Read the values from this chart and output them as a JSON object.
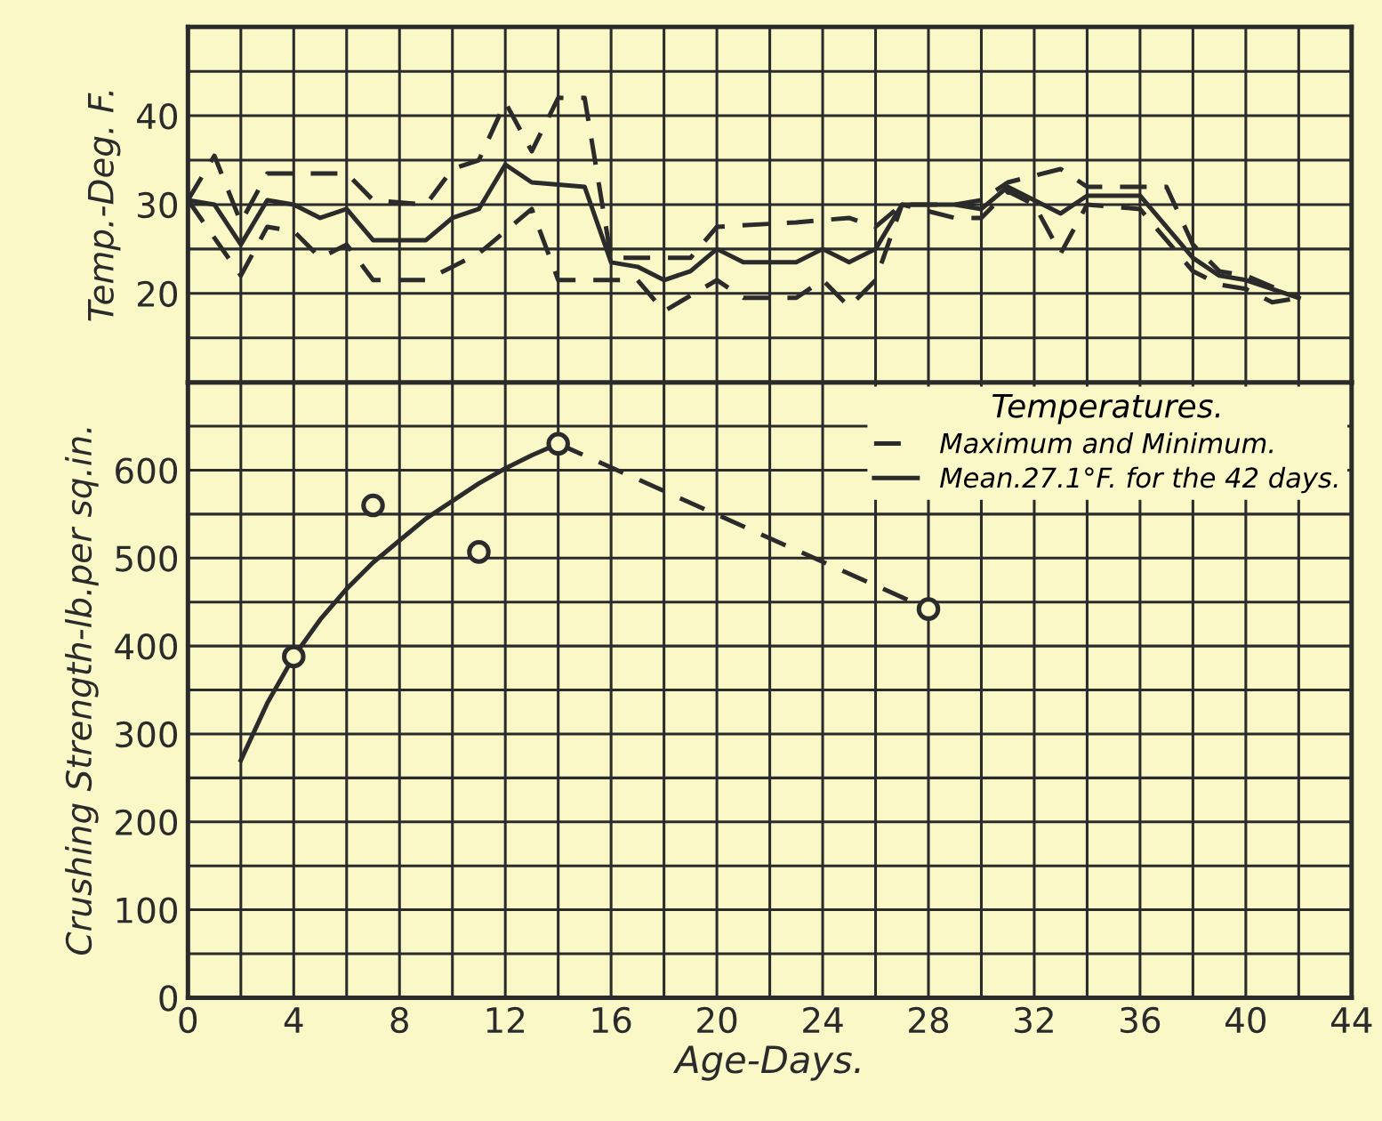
{
  "chart_data": [
    {
      "type": "line",
      "ylabel": "Temp.-Deg. F.",
      "legend_title": "Temperatures.",
      "legend": "bottom right",
      "grid": true,
      "tick_labels": "y",
      "marker": "none",
      "xlim": [
        0,
        44
      ],
      "xticks": [
        0,
        {
          "value": 2,
          "label": null
        },
        4,
        {
          "value": 6,
          "label": null
        },
        8,
        {
          "value": 10,
          "label": null
        },
        12,
        {
          "value": 14,
          "label": null
        },
        16,
        {
          "value": 18,
          "label": null
        },
        20,
        {
          "value": 22,
          "label": null
        },
        24,
        {
          "value": 26,
          "label": null
        },
        28,
        {
          "value": 30,
          "label": null
        },
        32,
        {
          "value": 34,
          "label": null
        },
        36,
        {
          "value": 38,
          "label": null
        },
        40,
        {
          "value": 42,
          "label": null
        },
        44
      ],
      "ylim": [
        10,
        50
      ],
      "yticks": [
        {
          "value": 10,
          "label": null
        },
        {
          "value": 15,
          "label": null
        },
        20,
        {
          "value": 25,
          "label": null
        },
        30,
        {
          "value": 35,
          "label": null
        },
        40,
        {
          "value": 45,
          "label": null
        },
        {
          "value": 50,
          "label": null
        }
      ],
      "series": [
        {
          "name": "Maximum and Minimum.",
          "color": "#2b2b2b",
          "line_style": "dashed",
          "x": [
            0,
            1,
            2,
            3,
            6,
            7,
            9,
            10,
            11,
            12,
            13,
            14,
            15,
            16,
            19,
            20,
            23,
            25,
            26,
            27,
            29,
            30,
            31,
            33,
            34,
            37,
            38,
            39,
            40,
            42
          ],
          "values": [
            30.5,
            35.5,
            28,
            33.5,
            33.5,
            30.5,
            30,
            34,
            35,
            41.5,
            36,
            42,
            42,
            24,
            24,
            27.5,
            28,
            28.5,
            27.5,
            30,
            30,
            30.5,
            32.5,
            34,
            32,
            32,
            25.5,
            22.5,
            22,
            19.5
          ]
        },
        {
          "color": "#2b2b2b",
          "line_style": "dashed",
          "x": [
            0,
            2,
            3,
            4,
            5,
            6,
            7,
            9,
            11,
            13,
            14,
            16,
            17,
            18,
            20,
            21,
            23,
            24,
            25,
            26,
            27,
            29,
            30,
            31,
            32,
            33,
            34,
            36,
            38,
            39,
            40,
            41,
            42
          ],
          "values": [
            30.5,
            22,
            27.5,
            27,
            24,
            25.5,
            21.5,
            21.5,
            24.5,
            29.5,
            21.5,
            21.5,
            21.5,
            18,
            21.5,
            19.5,
            19.5,
            21.5,
            18.5,
            21.5,
            30,
            28.5,
            28.5,
            31.5,
            30,
            24.5,
            30,
            29.5,
            22.5,
            21,
            20.5,
            19,
            19.5
          ]
        },
        {
          "name": "Mean.27.1°F. for the 42 days.",
          "color": "#2b2b2b",
          "line_style": "solid",
          "x": [
            0,
            1,
            2,
            3,
            4,
            5,
            6,
            7,
            9,
            10,
            11,
            12,
            13,
            15,
            16,
            17,
            18,
            19,
            20,
            21,
            23,
            24,
            25,
            26,
            27,
            29,
            30,
            31,
            33,
            34,
            36,
            38,
            39,
            40,
            41,
            42
          ],
          "values": [
            30.5,
            30,
            25.5,
            30.5,
            30,
            28.5,
            29.5,
            26,
            26,
            28.5,
            29.5,
            34.5,
            32.5,
            32,
            23.5,
            23,
            21.5,
            22.5,
            25,
            23.5,
            23.5,
            25,
            23.5,
            25,
            30,
            30,
            29.5,
            32,
            29,
            31,
            31,
            24,
            22,
            21.5,
            20.5,
            19.5
          ]
        }
      ]
    },
    {
      "type": "line",
      "ylabel": "Crushing Strength-lb.per sq.in.",
      "xlabel": "Age-Days.",
      "grid": true,
      "xlim": [
        0,
        44
      ],
      "xticks": [
        0,
        {
          "value": 2,
          "label": null
        },
        4,
        {
          "value": 6,
          "label": null
        },
        8,
        {
          "value": 10,
          "label": null
        },
        12,
        {
          "value": 14,
          "label": null
        },
        16,
        {
          "value": 18,
          "label": null
        },
        20,
        {
          "value": 22,
          "label": null
        },
        24,
        {
          "value": 26,
          "label": null
        },
        28,
        {
          "value": 30,
          "label": null
        },
        32,
        {
          "value": 34,
          "label": null
        },
        36,
        {
          "value": 38,
          "label": null
        },
        40,
        {
          "value": 42,
          "label": null
        },
        44
      ],
      "ylim": [
        0,
        700
      ],
      "yticks": [
        0,
        {
          "value": 50,
          "label": null
        },
        100,
        {
          "value": 150,
          "label": null
        },
        200,
        {
          "value": 250,
          "label": null
        },
        300,
        {
          "value": 350,
          "label": null
        },
        400,
        {
          "value": 450,
          "label": null
        },
        500,
        {
          "value": 550,
          "label": null
        },
        600,
        {
          "value": 650,
          "label": null
        },
        {
          "value": 700,
          "label": null
        }
      ],
      "series": [
        {
          "type": "scatter",
          "marker": "circle",
          "color": "#2b2b2b",
          "x": [
            4,
            7,
            11,
            14,
            28
          ],
          "values": [
            388,
            560,
            507,
            630,
            442
          ]
        },
        {
          "type": "line",
          "marker": "none",
          "line_style": "solid",
          "color": "#2b2b2b",
          "x": [
            2,
            3,
            4,
            5,
            6,
            7,
            8,
            9,
            10,
            11,
            12,
            13,
            14
          ],
          "values": [
            270,
            335,
            388,
            430,
            465,
            495,
            520,
            545,
            565,
            585,
            602,
            617,
            630
          ]
        },
        {
          "type": "line",
          "marker": "none",
          "line_style": "dashed",
          "color": "#2b2b2b",
          "x": [
            14,
            28
          ],
          "values": [
            630,
            442
          ]
        }
      ]
    }
  ]
}
